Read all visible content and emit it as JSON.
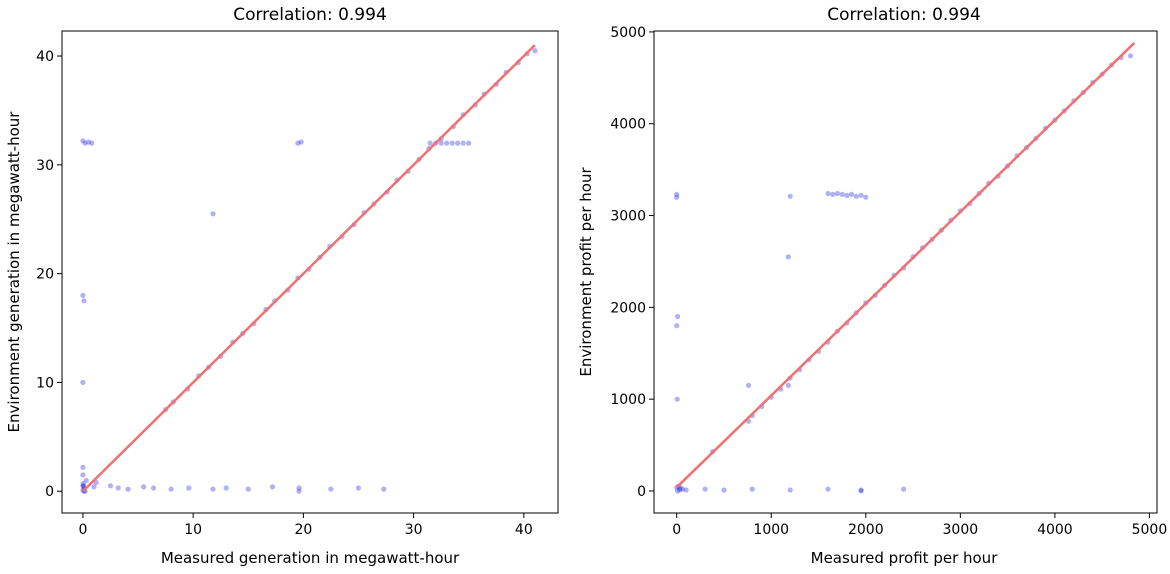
{
  "colors": {
    "points": "#1f1fe6",
    "fit_line": "#f27070",
    "frame": "#000000"
  },
  "chart_data": [
    {
      "type": "scatter",
      "title": "Correlation: 0.994",
      "xlabel": "Measured generation in megawatt-hour",
      "ylabel": "Environment generation in megawatt-hour",
      "xlim": [
        -1.9,
        43.1
      ],
      "ylim": [
        -2.0,
        42.3
      ],
      "x_ticks": [
        0,
        10,
        20,
        30,
        40
      ],
      "y_ticks": [
        0,
        10,
        20,
        30,
        40
      ],
      "grid": false,
      "fit_line": {
        "x": [
          0,
          41
        ],
        "y": [
          0,
          41
        ]
      },
      "series": [
        {
          "x": [
            0,
            0.2,
            0.5,
            0.8,
            0,
            0.1,
            0,
            0,
            0,
            0.3,
            1.2,
            2.5,
            1.0,
            3.2,
            4.1,
            5.5,
            6.4,
            8.0,
            9.6,
            11.8,
            13.0,
            15.0,
            17.2,
            19.6,
            22.5,
            25.0,
            27.3,
            0.05,
            0.1,
            0.2,
            0.1,
            0,
            0,
            0.02,
            11.8,
            19.6,
            7.5,
            8.2,
            9.5,
            10.5,
            11.4,
            12.5,
            13.6,
            14.5,
            15.5,
            16.6,
            17.4,
            18.6,
            19.5,
            20.5,
            21.5,
            22.4,
            23.5,
            24.6,
            25.5,
            26.4,
            27.6,
            28.5,
            29.5,
            30.5,
            31.4,
            32.5,
            33.6,
            34.5,
            35.6,
            36.4,
            37.5,
            38.4,
            39.5,
            40.3,
            41.0,
            32.0,
            32.5,
            33.0,
            33.5,
            34.0,
            34.5,
            35.0,
            31.5,
            19.5,
            19.8
          ],
          "y": [
            32.2,
            32.0,
            32.1,
            32.0,
            18.0,
            17.5,
            10.0,
            2.2,
            1.5,
            1.0,
            0.8,
            0.5,
            0.4,
            0.3,
            0.2,
            0.4,
            0.3,
            0.2,
            0.3,
            0.2,
            0.3,
            0.2,
            0.4,
            0.3,
            0.2,
            0.3,
            0.2,
            0.5,
            0.3,
            0.0,
            0.0,
            0.1,
            0.5,
            0.7,
            25.5,
            0.0,
            7.5,
            8.2,
            9.4,
            10.6,
            11.4,
            12.4,
            13.7,
            14.5,
            15.4,
            16.7,
            17.5,
            18.5,
            19.6,
            20.4,
            21.5,
            22.5,
            23.4,
            24.5,
            25.6,
            26.4,
            27.5,
            28.6,
            29.4,
            30.5,
            31.5,
            32.4,
            33.5,
            34.6,
            35.5,
            36.5,
            37.4,
            38.5,
            39.4,
            40.2,
            40.5,
            32.0,
            32.0,
            32.0,
            32.0,
            32.0,
            32.0,
            32.0,
            32.0,
            32.0,
            32.1
          ]
        }
      ]
    },
    {
      "type": "scatter",
      "title": "Correlation: 0.994",
      "xlabel": "Measured profit per hour",
      "ylabel": "Environment profit per hour",
      "xlim": [
        -240,
        5080
      ],
      "ylim": [
        -240,
        5010
      ],
      "x_ticks": [
        0,
        1000,
        2000,
        3000,
        4000,
        5000
      ],
      "y_ticks": [
        0,
        1000,
        2000,
        3000,
        4000,
        5000
      ],
      "grid": false,
      "fit_line": {
        "x": [
          0,
          4840
        ],
        "y": [
          40,
          4880
        ]
      },
      "series": [
        {
          "x": [
            0,
            0,
            10,
            0,
            5,
            20,
            40,
            60,
            100,
            300,
            500,
            800,
            1200,
            1600,
            1950,
            2400,
            10,
            30,
            0,
            1180,
            1200,
            1600,
            1650,
            1700,
            1750,
            1800,
            1850,
            1900,
            1950,
            2000,
            1180,
            760,
            760,
            800,
            900,
            1000,
            1100,
            1200,
            1300,
            1400,
            1500,
            1600,
            1700,
            1800,
            1900,
            2000,
            2100,
            2200,
            2300,
            2400,
            2500,
            2600,
            2700,
            2800,
            2900,
            3000,
            3100,
            3200,
            3300,
            3400,
            3500,
            3600,
            3700,
            3800,
            3900,
            4000,
            4100,
            4200,
            4300,
            4400,
            4500,
            4600,
            4700,
            4800,
            380,
            1950
          ],
          "y": [
            3230,
            3200,
            1900,
            1800,
            1000,
            50,
            30,
            20,
            10,
            20,
            10,
            20,
            10,
            20,
            10,
            20,
            0,
            10,
            40,
            2550,
            3210,
            3240,
            3230,
            3240,
            3230,
            3220,
            3230,
            3210,
            3220,
            3200,
            1150,
            1150,
            760,
            820,
            920,
            1020,
            1110,
            1230,
            1320,
            1430,
            1520,
            1620,
            1740,
            1830,
            1940,
            2050,
            2130,
            2240,
            2350,
            2430,
            2550,
            2650,
            2740,
            2840,
            2950,
            3050,
            3130,
            3240,
            3350,
            3430,
            3540,
            3650,
            3740,
            3840,
            3950,
            4040,
            4140,
            4250,
            4340,
            4450,
            4540,
            4640,
            4720,
            4740,
            430,
            0
          ]
        }
      ]
    }
  ]
}
